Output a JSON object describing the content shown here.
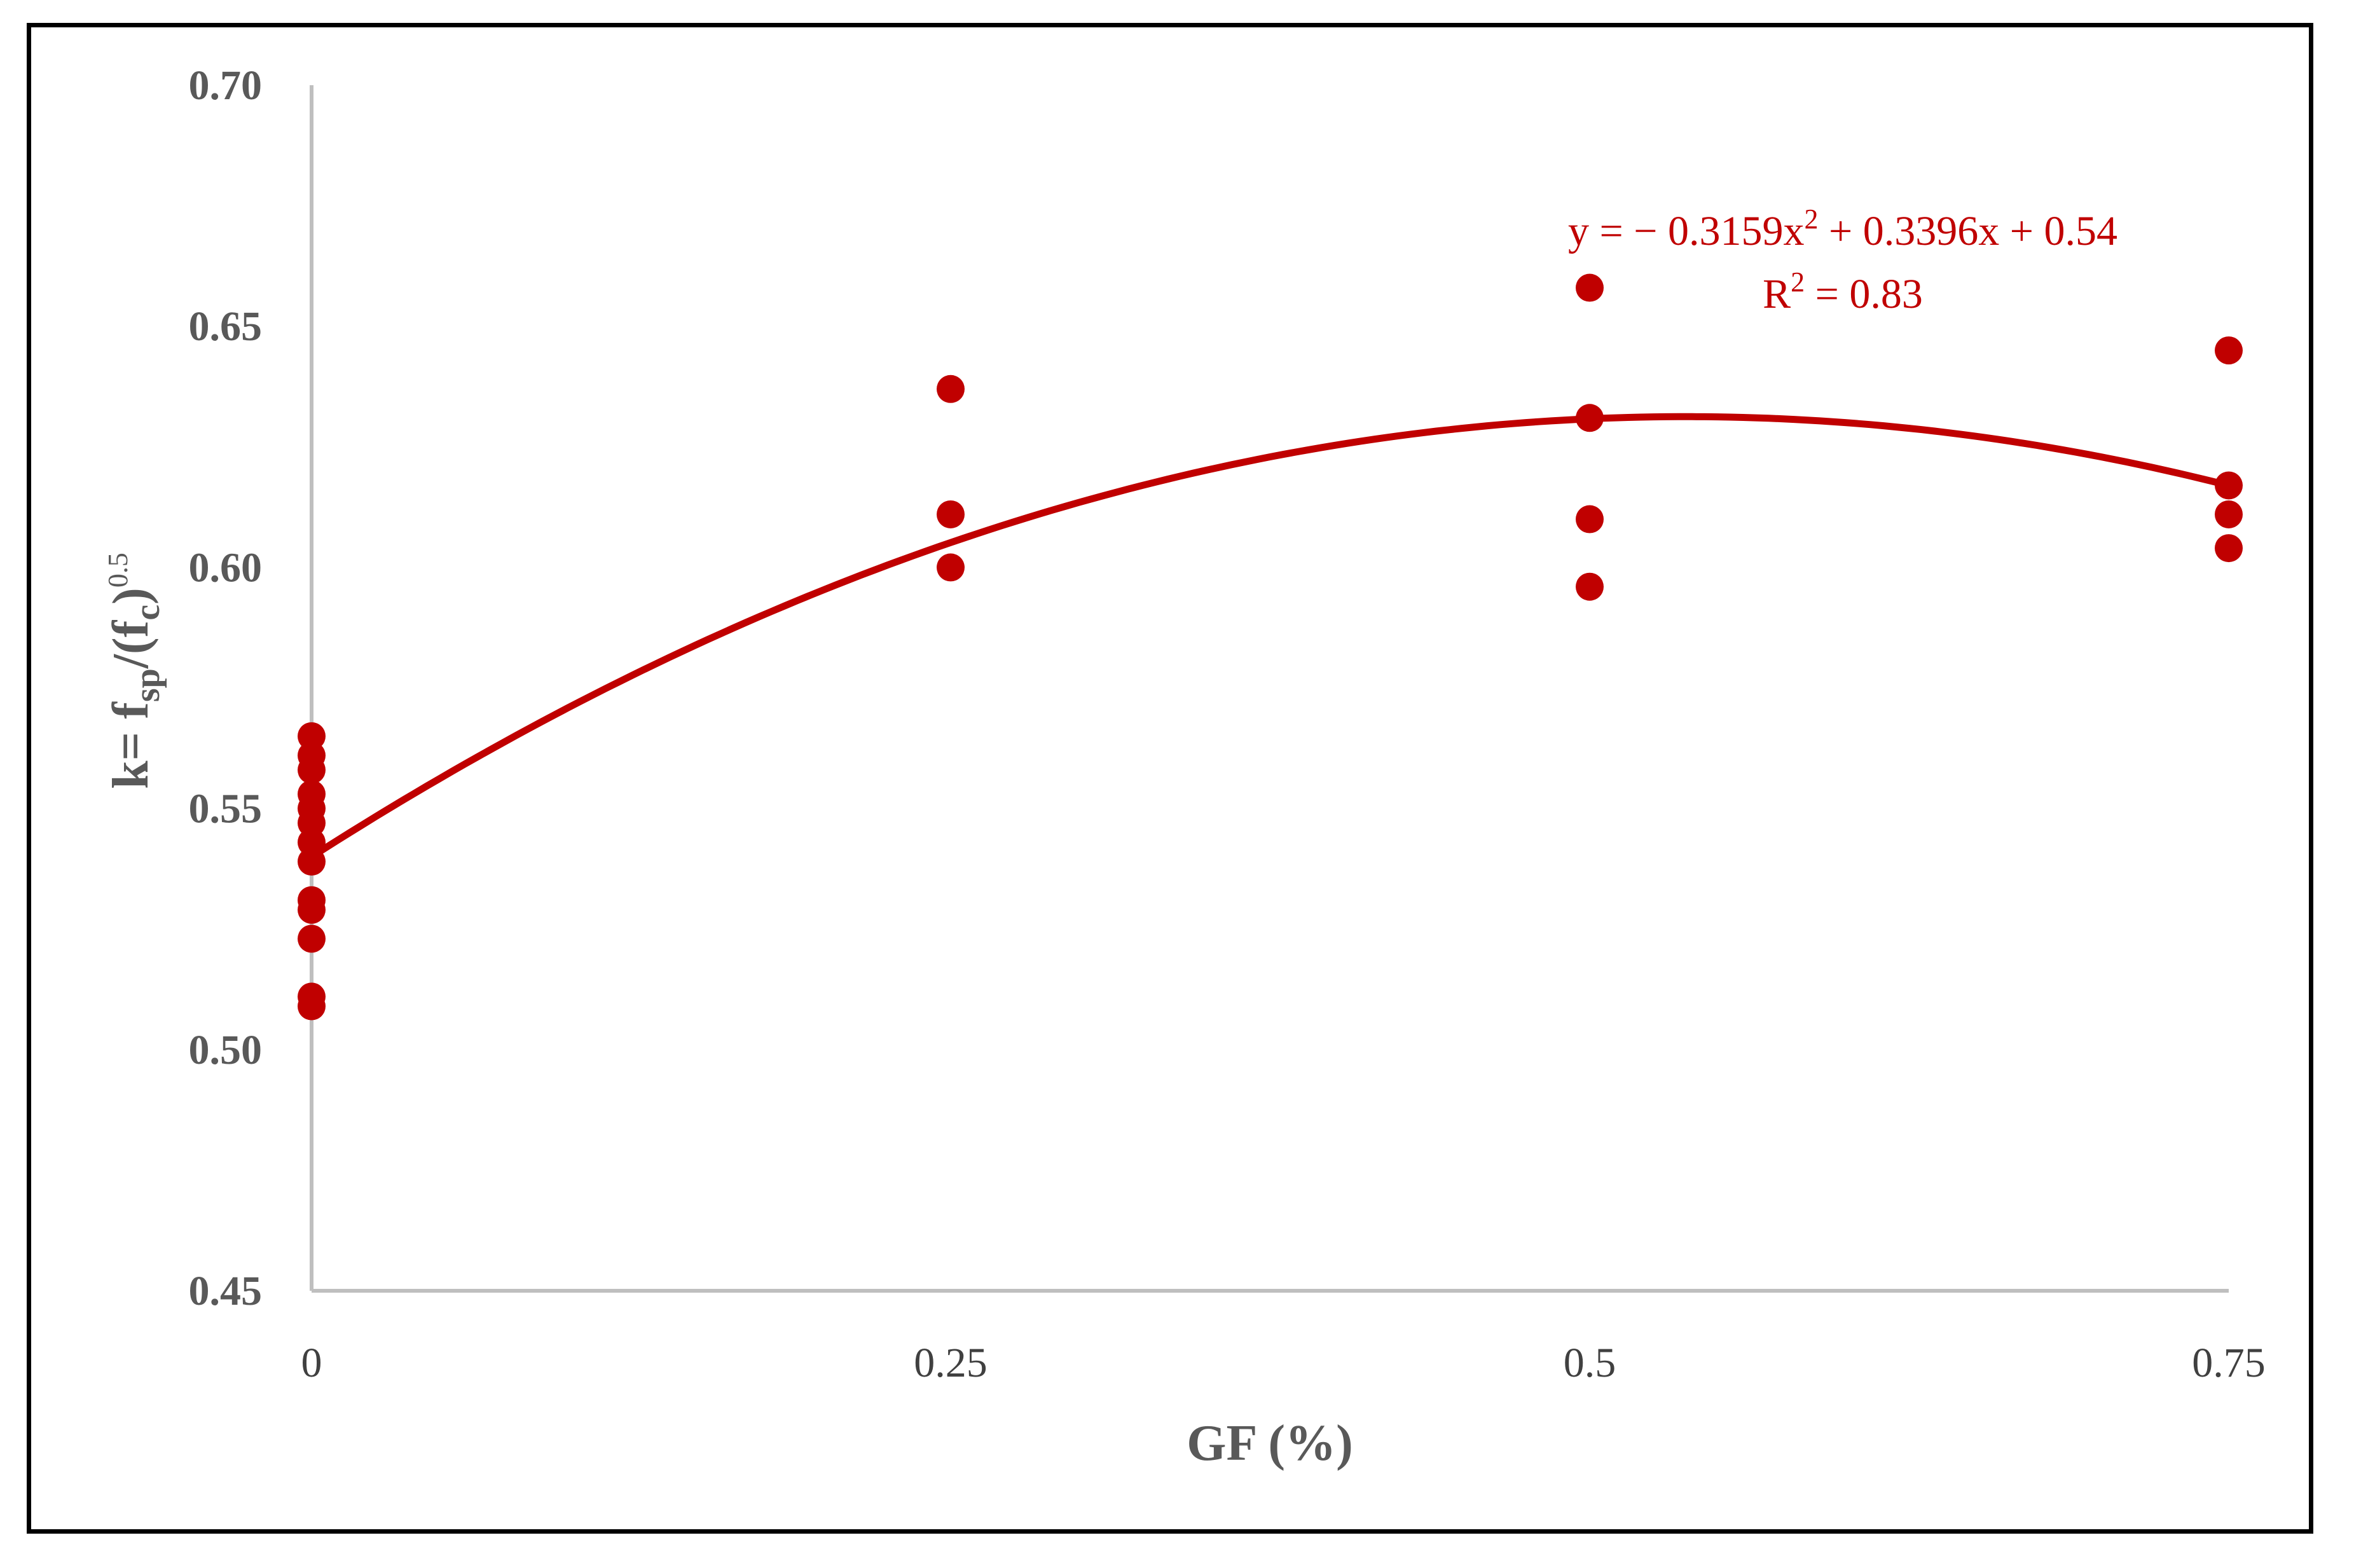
{
  "chart_data": {
    "type": "scatter",
    "xlabel": "GF (%)",
    "ylabel": {
      "prefix": "k= f",
      "sub1": "sp",
      "mid": "/(f",
      "sub2": "c",
      "close": ")",
      "sup": "0.5"
    },
    "x_ticks": [
      "0",
      "0.25",
      "0.5",
      "0.75"
    ],
    "x_tick_values": [
      0,
      0.25,
      0.5,
      0.75
    ],
    "y_ticks": [
      "0.45",
      "0.50",
      "0.55",
      "0.60",
      "0.65",
      "0.70"
    ],
    "y_tick_values": [
      0.45,
      0.5,
      0.55,
      0.6,
      0.65,
      0.7
    ],
    "xlim": [
      0,
      0.75
    ],
    "ylim": [
      0.45,
      0.7
    ],
    "grid": false,
    "series": [
      {
        "color": "#c00000",
        "points": [
          [
            0,
            0.565
          ],
          [
            0,
            0.561
          ],
          [
            0,
            0.558
          ],
          [
            0,
            0.553
          ],
          [
            0,
            0.55
          ],
          [
            0,
            0.547
          ],
          [
            0,
            0.543
          ],
          [
            0,
            0.539
          ],
          [
            0,
            0.531
          ],
          [
            0,
            0.529
          ],
          [
            0,
            0.523
          ],
          [
            0,
            0.511
          ],
          [
            0,
            0.509
          ],
          [
            0.25,
            0.637
          ],
          [
            0.25,
            0.611
          ],
          [
            0.25,
            0.6
          ],
          [
            0.5,
            0.658
          ],
          [
            0.5,
            0.631
          ],
          [
            0.5,
            0.61
          ],
          [
            0.5,
            0.596
          ],
          [
            0.75,
            0.645
          ],
          [
            0.75,
            0.617
          ],
          [
            0.75,
            0.611
          ],
          [
            0.75,
            0.604
          ]
        ]
      }
    ],
    "trendline": {
      "type": "polynomial",
      "coefficients": {
        "a": -0.3159,
        "b": 0.3396,
        "c": 0.54
      },
      "color": "#c00000",
      "equation_parts": {
        "lead": "y = − 0.3159x",
        "sup": "2",
        "tail": " + 0.3396x + 0.54"
      },
      "r2_parts": {
        "lead": "R",
        "sup": "2",
        "tail": " = 0.83"
      }
    },
    "colors": {
      "marker": "#c00000",
      "axis_line": "#bfbfbf",
      "label_text": "#595959"
    }
  }
}
